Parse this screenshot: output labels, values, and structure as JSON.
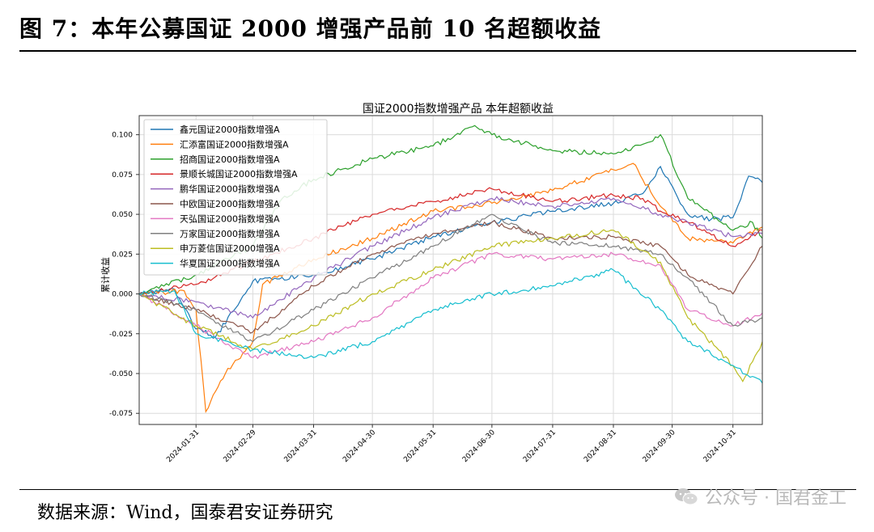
{
  "figure": {
    "title": "图 7：本年公募国证 2000 增强产品前 10 名超额收益",
    "source": "数据来源：Wind，国泰君安证券研究",
    "watermark": "公众号 · 国君金工"
  },
  "chart_data": {
    "type": "line",
    "title": "国证2000指数增强产品 本年超额收益",
    "xlabel": "",
    "ylabel": "累计收益",
    "x_range": [
      "2024-01-02",
      "2024-11-15"
    ],
    "ylim": [
      -0.082,
      0.112
    ],
    "y_ticks": [
      0.1,
      0.075,
      0.05,
      0.025,
      0.0,
      -0.025,
      -0.05,
      -0.075
    ],
    "y_tick_labels": [
      "0.100",
      "0.075",
      "0.050",
      "0.025",
      "0.000",
      "-0.025",
      "-0.050",
      "-0.075"
    ],
    "x_ticks": [
      "2024-01-31",
      "2024-02-29",
      "2024-03-31",
      "2024-04-30",
      "2024-05-31",
      "2024-06-30",
      "2024-07-31",
      "2024-08-31",
      "2024-09-30",
      "2024-10-31"
    ],
    "grid": true,
    "legend_position": "top-left",
    "series": [
      {
        "name": "鑫元国证2000指数增强A",
        "color": "#1f77b4",
        "points": [
          [
            "2024-01-02",
            0.0
          ],
          [
            "2024-01-20",
            0.003
          ],
          [
            "2024-01-31",
            -0.022
          ],
          [
            "2024-02-10",
            -0.027
          ],
          [
            "2024-02-29",
            0.008
          ],
          [
            "2024-03-31",
            0.012
          ],
          [
            "2024-04-30",
            0.022
          ],
          [
            "2024-05-31",
            0.036
          ],
          [
            "2024-06-30",
            0.045
          ],
          [
            "2024-07-31",
            0.052
          ],
          [
            "2024-08-31",
            0.057
          ],
          [
            "2024-09-15",
            0.063
          ],
          [
            "2024-09-24",
            0.08
          ],
          [
            "2024-10-08",
            0.05
          ],
          [
            "2024-10-20",
            0.047
          ],
          [
            "2024-10-31",
            0.048
          ],
          [
            "2024-11-08",
            0.074
          ],
          [
            "2024-11-15",
            0.07
          ]
        ]
      },
      {
        "name": "汇添富国证2000指数增强A",
        "color": "#ff7f0e",
        "points": [
          [
            "2024-01-02",
            0.0
          ],
          [
            "2024-01-25",
            0.002
          ],
          [
            "2024-01-31",
            -0.01
          ],
          [
            "2024-02-05",
            -0.074
          ],
          [
            "2024-02-15",
            -0.05
          ],
          [
            "2024-02-29",
            -0.03
          ],
          [
            "2024-03-05",
            0.006
          ],
          [
            "2024-03-31",
            0.022
          ],
          [
            "2024-04-30",
            0.035
          ],
          [
            "2024-05-31",
            0.052
          ],
          [
            "2024-06-30",
            0.057
          ],
          [
            "2024-07-31",
            0.065
          ],
          [
            "2024-08-31",
            0.078
          ],
          [
            "2024-09-10",
            0.082
          ],
          [
            "2024-09-24",
            0.055
          ],
          [
            "2024-10-08",
            0.035
          ],
          [
            "2024-10-31",
            0.032
          ],
          [
            "2024-11-15",
            0.042
          ]
        ]
      },
      {
        "name": "招商国证2000指数增强A",
        "color": "#2ca02c",
        "points": [
          [
            "2024-01-02",
            0.0
          ],
          [
            "2024-01-31",
            0.012
          ],
          [
            "2024-02-29",
            0.03
          ],
          [
            "2024-03-15",
            0.06
          ],
          [
            "2024-03-31",
            0.072
          ],
          [
            "2024-04-30",
            0.085
          ],
          [
            "2024-05-31",
            0.093
          ],
          [
            "2024-06-20",
            0.105
          ],
          [
            "2024-06-30",
            0.1
          ],
          [
            "2024-07-31",
            0.09
          ],
          [
            "2024-08-31",
            0.088
          ],
          [
            "2024-09-15",
            0.094
          ],
          [
            "2024-09-24",
            0.1
          ],
          [
            "2024-10-08",
            0.06
          ],
          [
            "2024-10-31",
            0.04
          ],
          [
            "2024-11-10",
            0.045
          ],
          [
            "2024-11-15",
            0.035
          ]
        ]
      },
      {
        "name": "景顺长城国证2000指数增强A",
        "color": "#d62728",
        "points": [
          [
            "2024-01-02",
            0.0
          ],
          [
            "2024-01-31",
            0.006
          ],
          [
            "2024-02-29",
            0.02
          ],
          [
            "2024-03-31",
            0.035
          ],
          [
            "2024-04-30",
            0.05
          ],
          [
            "2024-05-31",
            0.058
          ],
          [
            "2024-06-30",
            0.066
          ],
          [
            "2024-07-31",
            0.058
          ],
          [
            "2024-08-31",
            0.062
          ],
          [
            "2024-09-15",
            0.06
          ],
          [
            "2024-09-24",
            0.052
          ],
          [
            "2024-10-08",
            0.045
          ],
          [
            "2024-10-31",
            0.03
          ],
          [
            "2024-11-15",
            0.04
          ]
        ]
      },
      {
        "name": "鹏华国证2000指数增强A",
        "color": "#9467bd",
        "points": [
          [
            "2024-01-02",
            0.0
          ],
          [
            "2024-01-31",
            -0.005
          ],
          [
            "2024-02-29",
            -0.015
          ],
          [
            "2024-03-31",
            0.01
          ],
          [
            "2024-04-30",
            0.03
          ],
          [
            "2024-05-31",
            0.048
          ],
          [
            "2024-06-30",
            0.06
          ],
          [
            "2024-07-31",
            0.055
          ],
          [
            "2024-08-31",
            0.06
          ],
          [
            "2024-09-24",
            0.05
          ],
          [
            "2024-10-08",
            0.045
          ],
          [
            "2024-10-31",
            0.036
          ],
          [
            "2024-11-15",
            0.038
          ]
        ]
      },
      {
        "name": "中欧国证2000指数增强A",
        "color": "#8c564b",
        "points": [
          [
            "2024-01-02",
            0.0
          ],
          [
            "2024-01-31",
            -0.01
          ],
          [
            "2024-02-29",
            -0.024
          ],
          [
            "2024-03-31",
            0.005
          ],
          [
            "2024-04-30",
            0.025
          ],
          [
            "2024-05-31",
            0.038
          ],
          [
            "2024-06-30",
            0.045
          ],
          [
            "2024-07-31",
            0.035
          ],
          [
            "2024-08-31",
            0.036
          ],
          [
            "2024-09-24",
            0.03
          ],
          [
            "2024-10-08",
            0.012
          ],
          [
            "2024-10-31",
            0.0
          ],
          [
            "2024-11-15",
            0.03
          ]
        ]
      },
      {
        "name": "天弘国证2000指数增强A",
        "color": "#e377c2",
        "points": [
          [
            "2024-01-02",
            0.0
          ],
          [
            "2024-01-31",
            -0.02
          ],
          [
            "2024-02-29",
            -0.04
          ],
          [
            "2024-03-31",
            -0.03
          ],
          [
            "2024-04-30",
            -0.015
          ],
          [
            "2024-05-31",
            0.01
          ],
          [
            "2024-06-30",
            0.025
          ],
          [
            "2024-07-31",
            0.022
          ],
          [
            "2024-08-31",
            0.025
          ],
          [
            "2024-09-24",
            0.018
          ],
          [
            "2024-10-08",
            -0.01
          ],
          [
            "2024-10-31",
            -0.02
          ],
          [
            "2024-11-15",
            -0.012
          ]
        ]
      },
      {
        "name": "万家国证2000指数增强A",
        "color": "#7f7f7f",
        "points": [
          [
            "2024-01-02",
            0.0
          ],
          [
            "2024-01-31",
            -0.01
          ],
          [
            "2024-02-29",
            -0.03
          ],
          [
            "2024-03-31",
            -0.01
          ],
          [
            "2024-04-30",
            0.01
          ],
          [
            "2024-05-31",
            0.03
          ],
          [
            "2024-06-30",
            0.05
          ],
          [
            "2024-07-31",
            0.032
          ],
          [
            "2024-08-31",
            0.03
          ],
          [
            "2024-09-24",
            0.025
          ],
          [
            "2024-10-08",
            0.01
          ],
          [
            "2024-10-31",
            -0.02
          ],
          [
            "2024-11-15",
            -0.015
          ]
        ]
      },
      {
        "name": "申万菱信国证2000增强A",
        "color": "#bcbd22",
        "points": [
          [
            "2024-01-02",
            0.0
          ],
          [
            "2024-01-31",
            -0.02
          ],
          [
            "2024-02-29",
            -0.035
          ],
          [
            "2024-03-31",
            -0.02
          ],
          [
            "2024-04-30",
            0.0
          ],
          [
            "2024-05-31",
            0.015
          ],
          [
            "2024-06-30",
            0.03
          ],
          [
            "2024-07-31",
            0.035
          ],
          [
            "2024-08-31",
            0.04
          ],
          [
            "2024-09-24",
            0.02
          ],
          [
            "2024-10-08",
            -0.015
          ],
          [
            "2024-10-31",
            -0.045
          ],
          [
            "2024-11-05",
            -0.055
          ],
          [
            "2024-11-15",
            -0.03
          ]
        ]
      },
      {
        "name": "华夏国证2000指数增强A",
        "color": "#17becf",
        "points": [
          [
            "2024-01-02",
            0.0
          ],
          [
            "2024-01-20",
            0.002
          ],
          [
            "2024-01-31",
            -0.025
          ],
          [
            "2024-02-29",
            -0.035
          ],
          [
            "2024-03-31",
            -0.04
          ],
          [
            "2024-04-30",
            -0.03
          ],
          [
            "2024-05-31",
            -0.01
          ],
          [
            "2024-06-30",
            0.0
          ],
          [
            "2024-07-31",
            0.005
          ],
          [
            "2024-08-31",
            0.015
          ],
          [
            "2024-09-24",
            -0.01
          ],
          [
            "2024-10-08",
            -0.03
          ],
          [
            "2024-10-31",
            -0.045
          ],
          [
            "2024-11-15",
            -0.056
          ]
        ]
      }
    ]
  }
}
